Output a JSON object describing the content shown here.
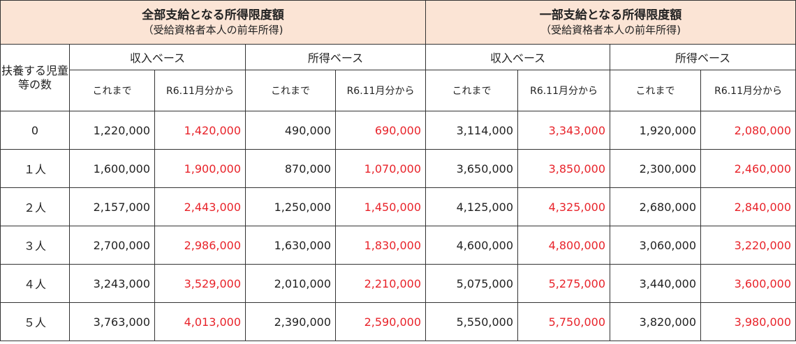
{
  "header": {
    "full": {
      "title": "全部支給となる所得限度額",
      "subtitle": "（受給資格者本人の前年所得)"
    },
    "partial": {
      "title": "一部支給となる所得限度額",
      "subtitle": "（受給資格者本人の前年所得)"
    }
  },
  "row_header": "扶養する児童等の数",
  "bases": [
    "収入ベース",
    "所得ベース",
    "収入ベース",
    "所得ベース"
  ],
  "periods": [
    "これまで",
    "R6.11月分から",
    "これまで",
    "R6.11月分から",
    "これまで",
    "R6.11月分から",
    "これまで",
    "R6.11月分から"
  ],
  "rows": [
    {
      "count": "0",
      "values": [
        "1,220,000",
        "1,420,000",
        "490,000",
        "690,000",
        "3,114,000",
        "3,343,000",
        "1,920,000",
        "2,080,000"
      ]
    },
    {
      "count": "１人",
      "values": [
        "1,600,000",
        "1,900,000",
        "870,000",
        "1,070,000",
        "3,650,000",
        "3,850,000",
        "2,300,000",
        "2,460,000"
      ]
    },
    {
      "count": "２人",
      "values": [
        "2,157,000",
        "2,443,000",
        "1,250,000",
        "1,450,000",
        "4,125,000",
        "4,325,000",
        "2,680,000",
        "2,840,000"
      ]
    },
    {
      "count": "３人",
      "values": [
        "2,700,000",
        "2,986,000",
        "1,630,000",
        "1,830,000",
        "4,600,000",
        "4,800,000",
        "3,060,000",
        "3,220,000"
      ]
    },
    {
      "count": "４人",
      "values": [
        "3,243,000",
        "3,529,000",
        "2,010,000",
        "2,210,000",
        "5,075,000",
        "5,275,000",
        "3,440,000",
        "3,600,000"
      ]
    },
    {
      "count": "５人",
      "values": [
        "3,763,000",
        "4,013,000",
        "2,390,000",
        "2,590,000",
        "5,550,000",
        "5,750,000",
        "3,820,000",
        "3,980,000"
      ]
    }
  ],
  "colors": {
    "header_band": "#fbe4d5",
    "new_value_text": "#e8232a"
  }
}
